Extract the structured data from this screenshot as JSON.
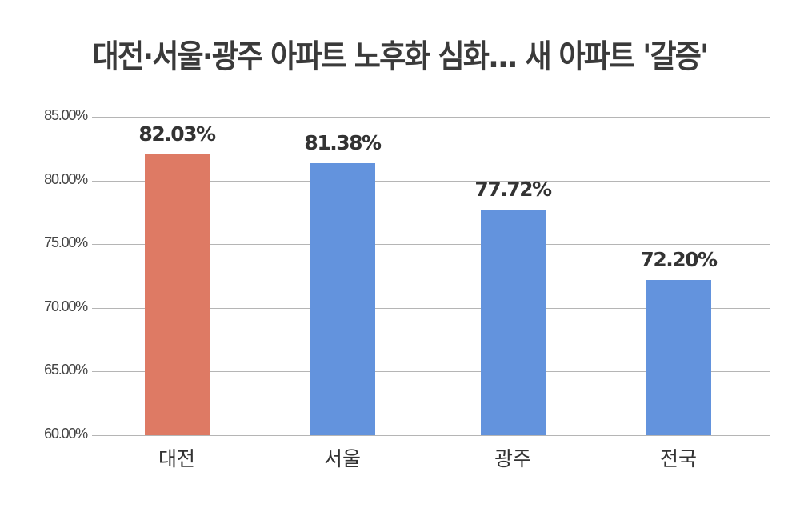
{
  "title": "대전·서울·광주 아파트 노후화 심화... 새 아파트 '갈증'",
  "colors": {
    "highlight": "#DE7A64",
    "default": "#6393DD",
    "grid": "#B5B5B5",
    "text": "#333333"
  },
  "chart_data": {
    "type": "bar",
    "title": "대전·서울·광주 아파트 노후화 심화... 새 아파트 '갈증'",
    "categories": [
      "대전",
      "서울",
      "광주",
      "전국"
    ],
    "values": [
      82.03,
      81.38,
      77.72,
      72.2
    ],
    "value_labels": [
      "82.03%",
      "81.38%",
      "77.72%",
      "72.20%"
    ],
    "bar_colors": [
      "#DE7A64",
      "#6393DD",
      "#6393DD",
      "#6393DD"
    ],
    "xlabel": "",
    "ylabel": "",
    "ylim": [
      60,
      85
    ],
    "yticks": [
      60,
      65,
      70,
      75,
      80,
      85
    ],
    "ytick_labels": [
      "60.00%",
      "65.00%",
      "70.00%",
      "75.00%",
      "80.00%",
      "85.00%"
    ],
    "grid": true,
    "legend": null
  }
}
